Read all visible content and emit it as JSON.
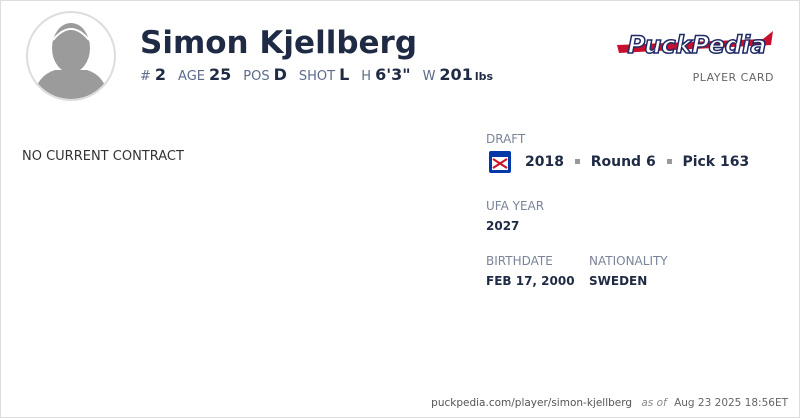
{
  "header": {
    "name": "Simon Kjellberg",
    "stats": [
      {
        "label": "#",
        "value": "2"
      },
      {
        "label": "AGE",
        "value": "25"
      },
      {
        "label": "POS",
        "value": "D"
      },
      {
        "label": "SHOT",
        "value": "L"
      },
      {
        "label": "H",
        "value": "6'3\""
      },
      {
        "label": "W",
        "value": "201",
        "unit": "lbs"
      }
    ],
    "logo": "PuckPedia",
    "card_label": "PLAYER CARD"
  },
  "contract": {
    "status": "NO CURRENT CONTRACT"
  },
  "draft": {
    "label": "DRAFT",
    "year": "2018",
    "round": "Round 6",
    "pick": "Pick 163"
  },
  "ufa": {
    "label": "UFA YEAR",
    "value": "2027"
  },
  "birth": {
    "label": "BIRTHDATE",
    "value": "FEB 17, 2000"
  },
  "nationality": {
    "label": "NATIONALITY",
    "value": "SWEDEN"
  },
  "footer": {
    "url": "puckpedia.com/player/simon-kjellberg",
    "as_of": "as of",
    "date": "Aug 23 2025 18:56ET"
  }
}
